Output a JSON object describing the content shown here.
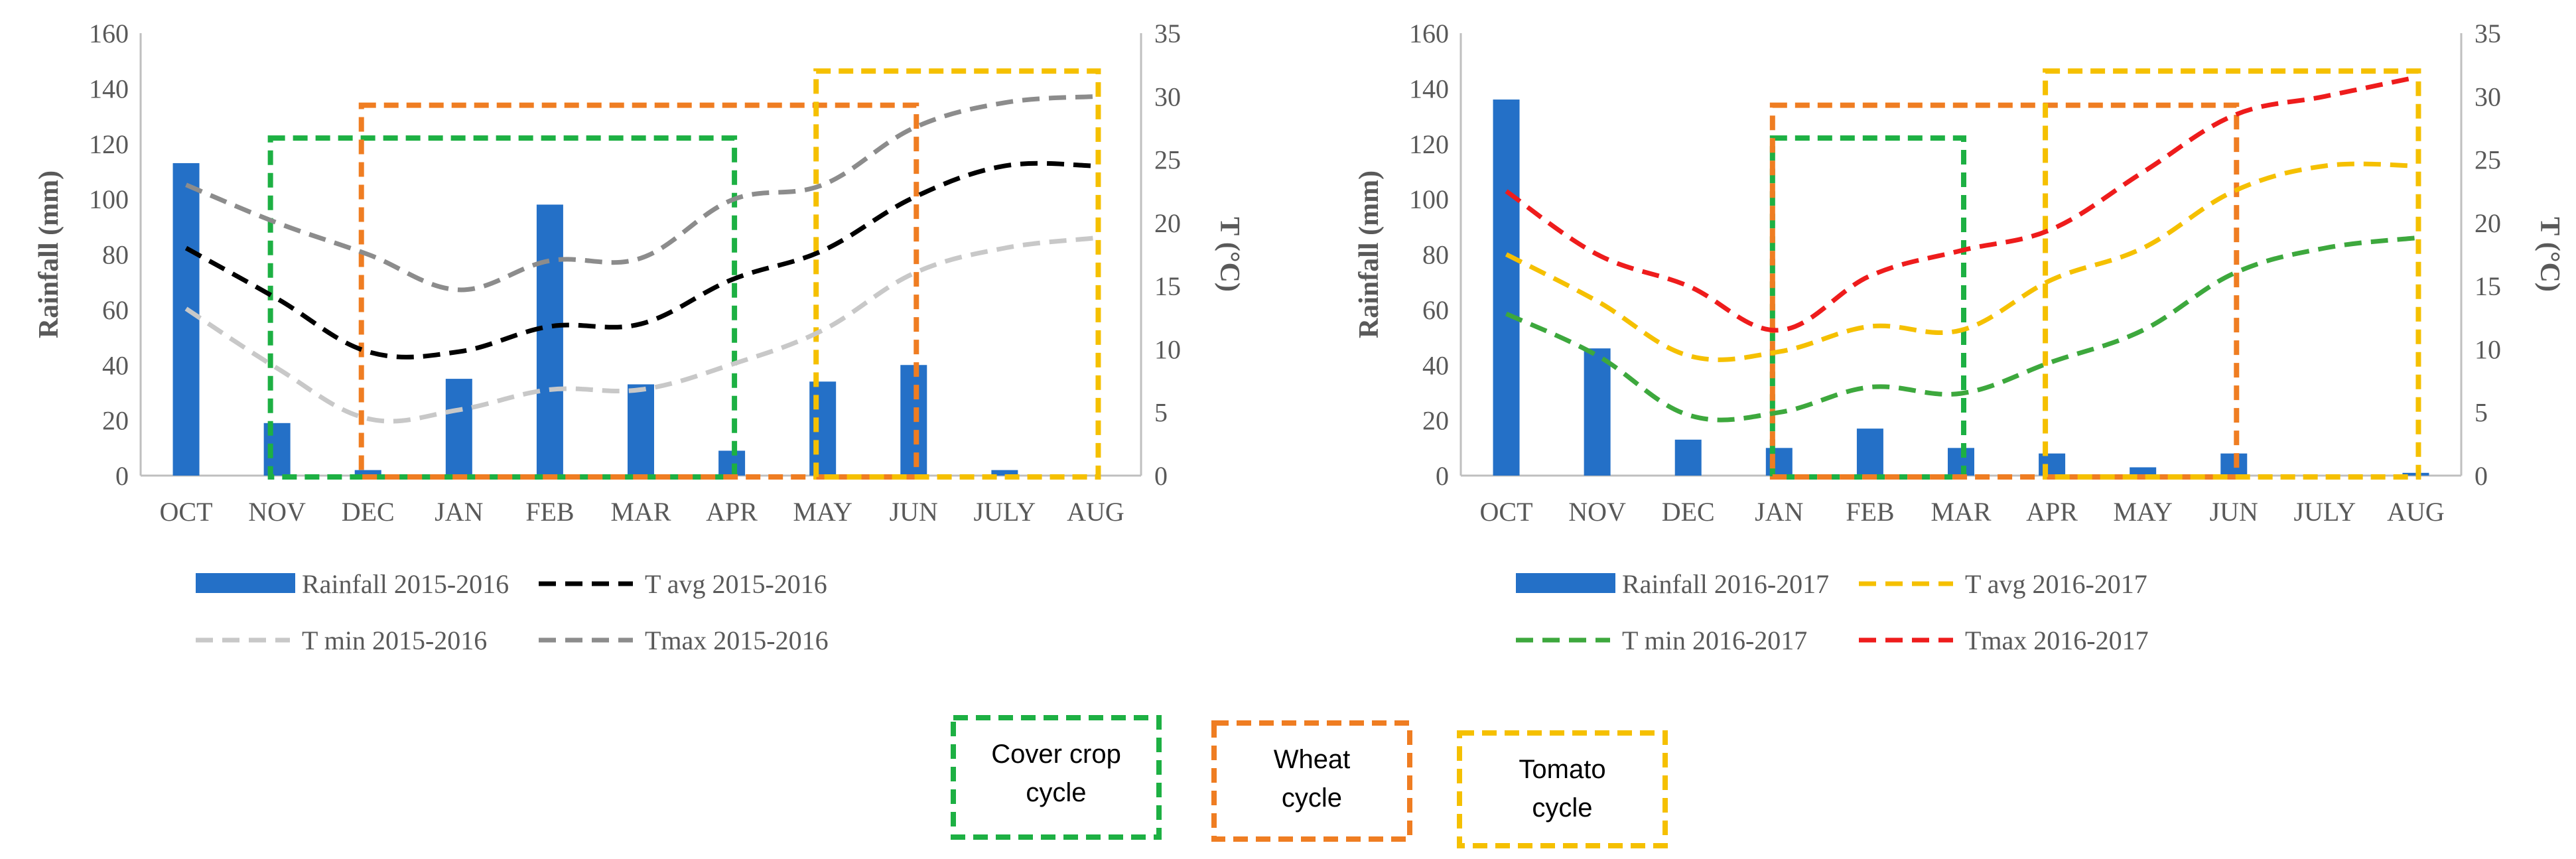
{
  "chart_data": [
    {
      "type": "bar+line",
      "months": [
        "OCT",
        "NOV",
        "DEC",
        "JAN",
        "FEB",
        "MAR",
        "APR",
        "MAY",
        "JUN",
        "JULY",
        "AUG"
      ],
      "ylabel": "Rainfall (mm)",
      "y2label": "T (°C)",
      "ylim": [
        0,
        160
      ],
      "yticks": [
        "0",
        "20",
        "40",
        "60",
        "80",
        "100",
        "120",
        "140",
        "160"
      ],
      "y2lim": [
        0,
        35
      ],
      "y2ticks": [
        "0",
        "5",
        "10",
        "15",
        "20",
        "25",
        "30",
        "35"
      ],
      "legend_position": "bottom",
      "bars": {
        "name": "Rainfall 2015-2016",
        "color": "#2470c7",
        "values": [
          113,
          19,
          2,
          35,
          98,
          33,
          9,
          34,
          40,
          2,
          0
        ]
      },
      "lines": [
        {
          "name": "T avg 2015-2016",
          "color": "#000000",
          "values": [
            18,
            14,
            9.8,
            9.8,
            11.8,
            12,
            15.5,
            17.8,
            22,
            24.5,
            24.5
          ]
        },
        {
          "name": "T min 2015-2016",
          "color": "#c8c8c8",
          "values": [
            13.2,
            8.5,
            4.5,
            5.2,
            6.8,
            6.8,
            8.8,
            11.5,
            16,
            18,
            18.8
          ]
        },
        {
          "name": "Tmax 2015-2016",
          "color": "#8c8c8c",
          "values": [
            23,
            20,
            17.5,
            14.7,
            17,
            17.2,
            21.8,
            23,
            27.5,
            29.5,
            30
          ]
        }
      ],
      "cycles": [
        {
          "name": "Cover crop cycle",
          "color": "#1db043",
          "start_month": "NOV",
          "end_month": "APR",
          "top_value": 26.7
        },
        {
          "name": "Wheat cycle",
          "color": "#ef7d22",
          "start_month": "DEC",
          "end_month": "JUN",
          "top_value": 29.3
        },
        {
          "name": "Tomato cycle",
          "color": "#f5c000",
          "start_month": "MAY",
          "end_month": "AUG",
          "top_value": 32
        }
      ]
    },
    {
      "type": "bar+line",
      "months": [
        "OCT",
        "NOV",
        "DEC",
        "JAN",
        "FEB",
        "MAR",
        "APR",
        "MAY",
        "JUN",
        "JULY",
        "AUG"
      ],
      "ylabel": "Rainfall (mm)",
      "y2label": "T (°C)",
      "ylim": [
        0,
        160
      ],
      "yticks": [
        "0",
        "20",
        "40",
        "60",
        "80",
        "100",
        "120",
        "140",
        "160"
      ],
      "y2lim": [
        0,
        35
      ],
      "y2ticks": [
        "0",
        "5",
        "10",
        "15",
        "20",
        "25",
        "30",
        "35"
      ],
      "legend_position": "bottom",
      "bars": {
        "name": "Rainfall 2016-2017",
        "color": "#2470c7",
        "values": [
          136,
          46,
          13,
          10,
          17,
          10,
          8,
          3,
          8,
          0,
          1
        ]
      },
      "lines": [
        {
          "name": "T avg 2016-2017",
          "color": "#f5c000",
          "values": [
            17.5,
            13.8,
            9.5,
            9.8,
            11.8,
            11.5,
            15.5,
            18,
            22.5,
            24.5,
            24.5
          ]
        },
        {
          "name": "T min 2016-2017",
          "color": "#3da83d",
          "values": [
            12.8,
            9.5,
            4.8,
            5,
            7,
            6.5,
            9,
            11.5,
            16,
            18,
            18.8
          ]
        },
        {
          "name": "Tmax 2016-2017",
          "color": "#ee1c1c",
          "values": [
            22.5,
            17.5,
            15,
            11.5,
            15.8,
            17.8,
            19.5,
            24,
            28.5,
            30,
            31.5
          ]
        }
      ],
      "cycles": [
        {
          "name": "Cover crop cycle",
          "color": "#1db043",
          "start_month": "JAN",
          "end_month": "MAR",
          "top_value": 26.7
        },
        {
          "name": "Wheat cycle",
          "color": "#ef7d22",
          "start_month": "JAN",
          "end_month": "JUN",
          "top_value": 29.3
        },
        {
          "name": "Tomato cycle",
          "color": "#f5c000",
          "start_month": "APR",
          "end_month": "AUG",
          "top_value": 32
        }
      ]
    }
  ],
  "cycle_legend": [
    {
      "lines": [
        "Cover crop",
        "cycle"
      ],
      "color": "#1db043"
    },
    {
      "lines": [
        "Wheat",
        "cycle"
      ],
      "color": "#ef7d22"
    },
    {
      "lines": [
        "Tomato",
        "cycle"
      ],
      "color": "#f5c000"
    }
  ]
}
